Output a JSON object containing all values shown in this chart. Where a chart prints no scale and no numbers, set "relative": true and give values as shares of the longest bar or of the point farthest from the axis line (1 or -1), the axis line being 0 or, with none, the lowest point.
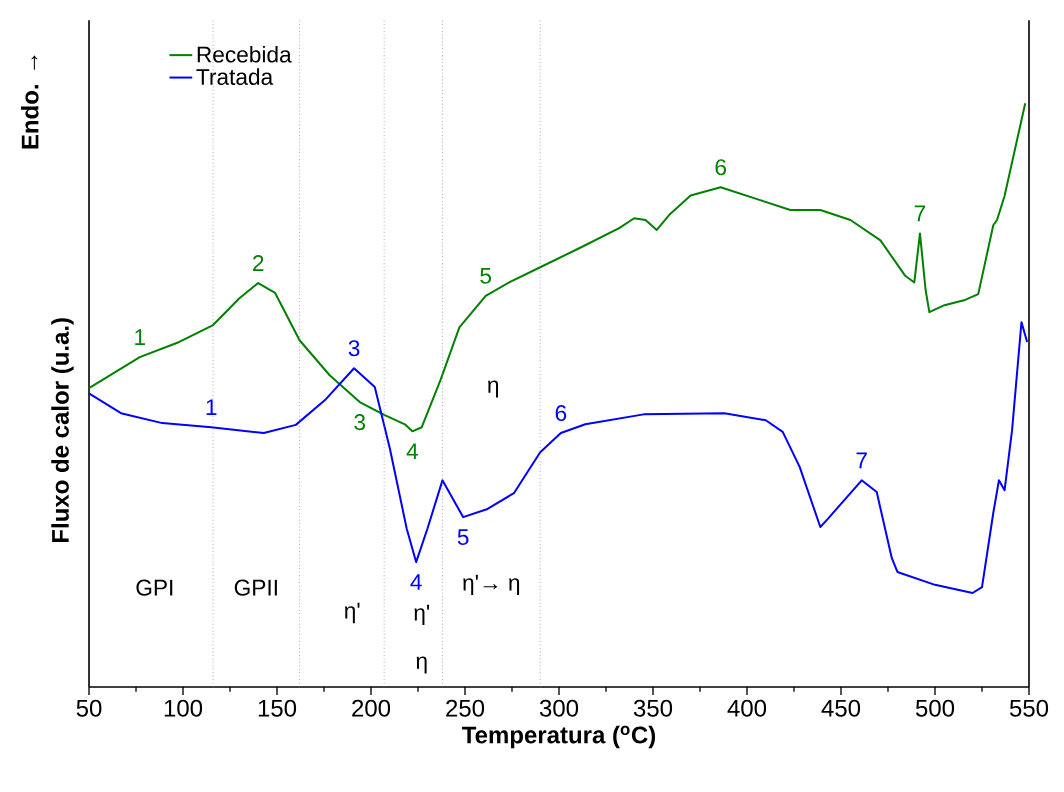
{
  "chart_data": {
    "type": "line",
    "relative": true,
    "xlabel": "Temperatura ($^{o}$C)",
    "ylabel": "Fluxo de calor (u.a.)",
    "xlim": [
      50,
      550
    ],
    "xticks": [
      50,
      100,
      150,
      200,
      250,
      300,
      350,
      400,
      450,
      500,
      550
    ],
    "legend": "top left",
    "series": [
      {
        "name": "Recebida",
        "color": "#008000",
        "x": [
          50,
          77,
          98,
          116,
          130,
          140,
          149,
          162,
          178,
          194,
          207,
          218,
          222,
          227,
          237,
          247,
          261,
          274,
          290,
          311,
          332,
          340,
          346,
          352,
          359,
          370,
          386,
          407,
          423,
          439,
          455,
          471,
          484,
          489,
          492,
          495,
          497,
          505,
          516,
          523,
          531,
          533,
          537,
          548
        ],
        "values": [
          0.512,
          0.565,
          0.591,
          0.62,
          0.666,
          0.692,
          0.675,
          0.594,
          0.534,
          0.488,
          0.466,
          0.45,
          0.438,
          0.445,
          0.526,
          0.616,
          0.67,
          0.694,
          0.719,
          0.752,
          0.786,
          0.803,
          0.8,
          0.783,
          0.81,
          0.842,
          0.856,
          0.834,
          0.817,
          0.817,
          0.8,
          0.765,
          0.705,
          0.693,
          0.777,
          0.68,
          0.642,
          0.654,
          0.663,
          0.673,
          0.791,
          0.8,
          0.841,
          1.0
        ]
      },
      {
        "name": "Tratada",
        "color": "#0000ff",
        "x": [
          50,
          67,
          89,
          115,
          143,
          160,
          176,
          191,
          202,
          210,
          219,
          224,
          230,
          238,
          249,
          262,
          276,
          290,
          301,
          314,
          345,
          388,
          410,
          419,
          428,
          439,
          443,
          461,
          469,
          477,
          480,
          500,
          520,
          525,
          531,
          534,
          537,
          541,
          546,
          549
        ],
        "values": [
          0.503,
          0.469,
          0.452,
          0.445,
          0.435,
          0.449,
          0.493,
          0.546,
          0.514,
          0.409,
          0.271,
          0.214,
          0.271,
          0.354,
          0.291,
          0.305,
          0.332,
          0.402,
          0.435,
          0.45,
          0.467,
          0.469,
          0.457,
          0.437,
          0.377,
          0.274,
          0.288,
          0.354,
          0.334,
          0.221,
          0.197,
          0.175,
          0.161,
          0.171,
          0.298,
          0.354,
          0.337,
          0.44,
          0.625,
          0.591
        ]
      }
    ],
    "ref_lines": [
      {
        "axis": "x",
        "value": 116,
        "color": "#808080",
        "line_style": "dotted"
      },
      {
        "axis": "x",
        "value": 162,
        "color": "#808080",
        "line_style": "dotted"
      },
      {
        "axis": "x",
        "value": 207,
        "color": "#808080",
        "line_style": "dotted"
      },
      {
        "axis": "x",
        "value": 238,
        "color": "#808080",
        "line_style": "dotted"
      },
      {
        "axis": "x",
        "value": 290,
        "color": "#808080",
        "line_style": "dotted"
      }
    ],
    "annotations": [
      "Endo. →",
      "GPI",
      "GPII",
      "η'",
      "η'",
      "η",
      "η'→ η",
      "η",
      {
        "text": "1",
        "x": 77,
        "y": 0.565
      },
      {
        "text": "2",
        "x": 140,
        "y": 0.692
      },
      {
        "text": "3",
        "x": 194,
        "y": 0.488
      },
      {
        "text": "4",
        "x": 222,
        "y": 0.438
      },
      {
        "text": "5",
        "x": 261,
        "y": 0.67
      },
      {
        "text": "6",
        "x": 386,
        "y": 0.856
      },
      {
        "text": "7",
        "x": 492,
        "y": 0.777
      },
      {
        "text": "1",
        "x": 115,
        "y": 0.445
      },
      {
        "text": "3",
        "x": 191,
        "y": 0.546
      },
      {
        "text": "4",
        "x": 224,
        "y": 0.214
      },
      {
        "text": "5",
        "x": 249,
        "y": 0.291
      },
      {
        "text": "6",
        "x": 301,
        "y": 0.435
      },
      {
        "text": "7",
        "x": 461,
        "y": 0.354
      }
    ]
  }
}
